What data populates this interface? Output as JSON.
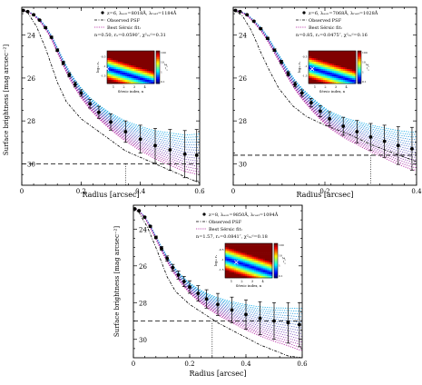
{
  "chart_data": [
    {
      "type": "line",
      "panel": "top-left",
      "xlabel": "Radius  [arcsec]",
      "ylabel": "Surface brightness  [mag arcsec⁻²]",
      "xlim": [
        0,
        0.6
      ],
      "ylim": [
        31,
        22.7
      ],
      "y_inverted": true,
      "xticks": [
        0,
        0.2,
        0.4,
        0.6
      ],
      "xtick_labels": [
        "0",
        "0.2",
        "0.4",
        "0.6"
      ],
      "yticks": [
        24,
        26,
        28,
        30
      ],
      "ytick_labels": [
        "24",
        "26",
        "28",
        "30"
      ],
      "legend_lines": [
        "z=6, λₑₒₙ=8018Å, λᵣₑₛₜ=1184Å",
        "Observed PSF",
        "Best Sérsic fit:",
        "n=0.50, rₑ=0.0590″, χ²ᵣₑᵈ=0.31"
      ],
      "colors": {
        "data": "#000000",
        "model_blue": "#00a8e8",
        "model_magenta": "#b0179c",
        "psf": "#000000"
      },
      "sky_limit": 30.0,
      "vertical_marker": 0.35,
      "data_points": {
        "x": [
          0.005,
          0.02,
          0.04,
          0.06,
          0.08,
          0.1,
          0.12,
          0.14,
          0.16,
          0.18,
          0.2,
          0.23,
          0.26,
          0.3,
          0.35,
          0.4,
          0.45,
          0.5,
          0.55,
          0.59
        ],
        "y": [
          22.85,
          22.9,
          23.05,
          23.3,
          23.65,
          24.1,
          24.7,
          25.3,
          25.85,
          26.3,
          26.7,
          27.2,
          27.6,
          28.05,
          28.5,
          28.85,
          29.15,
          29.35,
          29.55,
          29.6
        ],
        "err": [
          0.02,
          0.02,
          0.03,
          0.03,
          0.04,
          0.05,
          0.06,
          0.08,
          0.1,
          0.12,
          0.15,
          0.2,
          0.28,
          0.38,
          0.5,
          0.65,
          0.8,
          0.95,
          1.1,
          1.2
        ]
      },
      "psf_curve": {
        "x": [
          0,
          0.02,
          0.05,
          0.08,
          0.1,
          0.12,
          0.15,
          0.2,
          0.25,
          0.3,
          0.35,
          0.4,
          0.45,
          0.5,
          0.55,
          0.6
        ],
        "y": [
          22.8,
          22.95,
          23.6,
          24.6,
          25.4,
          26.2,
          27.1,
          27.9,
          28.4,
          28.9,
          29.4,
          29.7,
          30.0,
          30.3,
          30.6,
          30.9
        ]
      },
      "model_spread_at_edge": [
        28.6,
        30.5
      ],
      "inset": {
        "xlabel": "Sérsic index, n",
        "ylabel": "log₁₀ rₑ",
        "xtick_labels": [
          "1",
          "2",
          "3",
          "4"
        ],
        "ytick_labels": [
          "-1.5",
          "-1",
          "-0.5"
        ],
        "colorbar_labels": [
          "100",
          "10",
          "1",
          "0.1"
        ],
        "colorbar_title": "χ²ᵣₑᵈ",
        "best_fit_n": 0.5,
        "best_fit_logre": -1.23
      }
    },
    {
      "type": "line",
      "panel": "top-right",
      "xlabel": "Radius  [arcsec]",
      "ylabel": "",
      "xlim": [
        0,
        0.4
      ],
      "ylim": [
        31,
        22.7
      ],
      "y_inverted": true,
      "xticks": [
        0,
        0.2,
        0.4
      ],
      "xtick_labels": [
        "0",
        "0.2",
        "0.4"
      ],
      "yticks": [
        24,
        26,
        28,
        30
      ],
      "ytick_labels": [
        "24",
        "26",
        "28",
        "30"
      ],
      "legend_lines": [
        "z=6, λₑₒₙ=7068Å, λᵣₑₛₜ=1028Å",
        "Observed PSF",
        "Best Sérsic fit:",
        "n=0.85, rₑ=0.0475″, χ²ᵣₑᵈ=0.16"
      ],
      "colors": {
        "data": "#000000",
        "model_blue": "#00a8e8",
        "model_magenta": "#b0179c",
        "psf": "#000000"
      },
      "sky_limit": 29.6,
      "vertical_marker": 0.3,
      "data_points": {
        "x": [
          0.005,
          0.015,
          0.03,
          0.045,
          0.06,
          0.075,
          0.09,
          0.105,
          0.12,
          0.135,
          0.15,
          0.17,
          0.19,
          0.21,
          0.24,
          0.27,
          0.3,
          0.33,
          0.36,
          0.39
        ],
        "y": [
          22.85,
          22.9,
          23.05,
          23.35,
          23.7,
          24.15,
          24.7,
          25.25,
          25.8,
          26.3,
          26.7,
          27.15,
          27.55,
          27.9,
          28.25,
          28.5,
          28.75,
          28.95,
          29.15,
          29.3
        ],
        "err": [
          0.02,
          0.02,
          0.03,
          0.03,
          0.04,
          0.05,
          0.06,
          0.08,
          0.1,
          0.12,
          0.15,
          0.2,
          0.26,
          0.33,
          0.42,
          0.52,
          0.63,
          0.75,
          0.88,
          1.0
        ]
      },
      "psf_curve": {
        "x": [
          0,
          0.02,
          0.04,
          0.06,
          0.08,
          0.1,
          0.13,
          0.16,
          0.2,
          0.25,
          0.3,
          0.35,
          0.4
        ],
        "y": [
          22.8,
          23.1,
          23.8,
          24.8,
          25.7,
          26.5,
          27.3,
          27.8,
          28.2,
          28.6,
          29.1,
          29.5,
          29.9
        ]
      },
      "model_spread_at_edge": [
        28.5,
        30.3
      ],
      "inset": {
        "xlabel": "Sérsic index, n",
        "ylabel": "log₁₀ rₑ",
        "xtick_labels": [
          "1",
          "2",
          "3",
          "4"
        ],
        "ytick_labels": [
          "-1.5",
          "-1",
          "-0.5"
        ],
        "colorbar_labels": [
          "100",
          "10",
          "1",
          "0.1"
        ],
        "colorbar_title": "χ²ᵣₑᵈ",
        "best_fit_n": 0.85,
        "best_fit_logre": -1.32
      }
    },
    {
      "type": "line",
      "panel": "bottom-center",
      "xlabel": "Radius  [arcsec]",
      "ylabel": "Surface brightness  [mag arcsec⁻²]",
      "xlim": [
        0,
        0.6
      ],
      "ylim": [
        31,
        22.7
      ],
      "y_inverted": true,
      "xticks": [
        0,
        0.2,
        0.4,
        0.6
      ],
      "xtick_labels": [
        "0",
        "0.2",
        "0.4",
        "0.6"
      ],
      "yticks": [
        24,
        26,
        28,
        30
      ],
      "ytick_labels": [
        "24",
        "26",
        "28",
        "30"
      ],
      "legend_lines": [
        "z=8, λₑₒₙ=9850Å, λᵣₑₛₜ=1094Å",
        "Observed PSF",
        "Best Sérsic fit:",
        "n=1.57, rₑ=0.0841″, χ²ᵣₑᵈ=0.18"
      ],
      "colors": {
        "data": "#000000",
        "model_blue": "#00a8e8",
        "model_magenta": "#b0179c",
        "psf": "#000000"
      },
      "sky_limit": 29.0,
      "vertical_marker": 0.28,
      "data_points": {
        "x": [
          0.005,
          0.02,
          0.04,
          0.06,
          0.08,
          0.1,
          0.12,
          0.14,
          0.16,
          0.18,
          0.2,
          0.23,
          0.26,
          0.3,
          0.35,
          0.4,
          0.45,
          0.5,
          0.55,
          0.59
        ],
        "y": [
          22.9,
          23.0,
          23.35,
          23.85,
          24.45,
          25.05,
          25.6,
          26.1,
          26.5,
          26.85,
          27.15,
          27.5,
          27.8,
          28.1,
          28.4,
          28.65,
          28.85,
          29.0,
          29.1,
          29.2
        ],
        "err": [
          0.02,
          0.03,
          0.04,
          0.05,
          0.07,
          0.1,
          0.14,
          0.18,
          0.22,
          0.28,
          0.34,
          0.42,
          0.5,
          0.6,
          0.7,
          0.8,
          0.9,
          1.0,
          1.1,
          1.2
        ]
      },
      "psf_curve": {
        "x": [
          0,
          0.02,
          0.05,
          0.08,
          0.1,
          0.12,
          0.15,
          0.2,
          0.25,
          0.3,
          0.35,
          0.4,
          0.45,
          0.5,
          0.55,
          0.6
        ],
        "y": [
          22.9,
          23.1,
          23.9,
          25.0,
          25.8,
          26.6,
          27.4,
          28.1,
          28.6,
          29.1,
          29.5,
          29.9,
          30.3,
          30.6,
          30.9,
          31.1
        ]
      },
      "model_spread_at_edge": [
        28.3,
        30.6
      ],
      "inset": {
        "xlabel": "Sérsic index, n",
        "ylabel": "log₁₀ rₑ",
        "xtick_labels": [
          "1",
          "2",
          "3",
          "4"
        ],
        "ytick_labels": [
          "-1.5",
          "-1",
          "-0.5"
        ],
        "colorbar_labels": [
          "100",
          "10",
          "1",
          "0.1"
        ],
        "colorbar_title": "χ²ᵣₑᵈ",
        "best_fit_n": 1.57,
        "best_fit_logre": -1.08
      }
    }
  ]
}
